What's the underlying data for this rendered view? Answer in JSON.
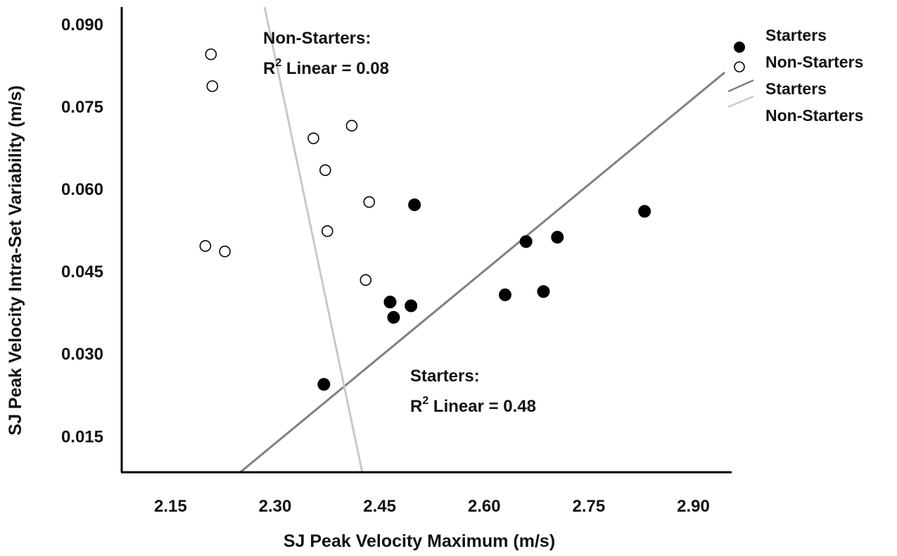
{
  "chart_data": {
    "type": "scatter",
    "title": "",
    "xlabel": "SJ Peak Velocity Maximum (m/s)",
    "ylabel": "SJ Peak Velocity Intra-Set Variability (m/s)",
    "xlim": [
      2.08,
      2.955
    ],
    "ylim": [
      0.0085,
      0.0932
    ],
    "x_ticks": [
      2.15,
      2.3,
      2.45,
      2.6,
      2.75,
      2.9
    ],
    "x_tick_labels": [
      "2.15",
      "2.30",
      "2.45",
      "2.60",
      "2.75",
      "2.90"
    ],
    "y_ticks": [
      0.015,
      0.03,
      0.045,
      0.06,
      0.075,
      0.09
    ],
    "y_tick_labels": [
      "0.015",
      "0.030",
      "0.045",
      "0.060",
      "0.075",
      "0.090"
    ],
    "grid": false,
    "legend_position": "top-right",
    "legend": [
      {
        "label": "Starters",
        "marker": "filled-circle"
      },
      {
        "label": "Non-Starters",
        "marker": "open-circle"
      },
      {
        "label": "Starters",
        "marker": "dark-line"
      },
      {
        "label": "Non-Starters",
        "marker": "light-line"
      }
    ],
    "series": [
      {
        "name": "Starters",
        "marker": "filled-circle",
        "color": "#000000",
        "points": [
          [
            2.37,
            0.0245
          ],
          [
            2.465,
            0.0395
          ],
          [
            2.47,
            0.0367
          ],
          [
            2.495,
            0.0388
          ],
          [
            2.5,
            0.0572
          ],
          [
            2.63,
            0.0408
          ],
          [
            2.66,
            0.0505
          ],
          [
            2.685,
            0.0414
          ],
          [
            2.705,
            0.0513
          ],
          [
            2.83,
            0.056
          ]
        ]
      },
      {
        "name": "Non-Starters",
        "marker": "open-circle",
        "color": "#000000",
        "points": [
          [
            2.2,
            0.0497
          ],
          [
            2.208,
            0.0846
          ],
          [
            2.21,
            0.0788
          ],
          [
            2.228,
            0.0487
          ],
          [
            2.355,
            0.0693
          ],
          [
            2.372,
            0.0635
          ],
          [
            2.375,
            0.0524
          ],
          [
            2.41,
            0.0716
          ],
          [
            2.43,
            0.0435
          ],
          [
            2.435,
            0.0577
          ]
        ]
      }
    ],
    "fit_lines": [
      {
        "name": "Starters",
        "color": "#808080",
        "x": [
          2.25,
          2.945
        ],
        "y": [
          0.0085,
          0.0813
        ]
      },
      {
        "name": "Non-Starters",
        "color": "#c8c8c8",
        "x": [
          2.285,
          2.425
        ],
        "y": [
          0.0932,
          0.0085
        ]
      }
    ],
    "annotations": [
      {
        "line1": "Non-Starters:",
        "line2_prefix": "R",
        "line2_sup": "2",
        "line2_rest": " Linear = 0.08",
        "anchor": [
          2.3475,
          0.0887
        ]
      },
      {
        "line1": "Starters:",
        "line2_prefix": "R",
        "line2_sup": "2",
        "line2_rest": " Linear = 0.48",
        "anchor": [
          2.5304,
          0.0313
        ]
      }
    ]
  }
}
